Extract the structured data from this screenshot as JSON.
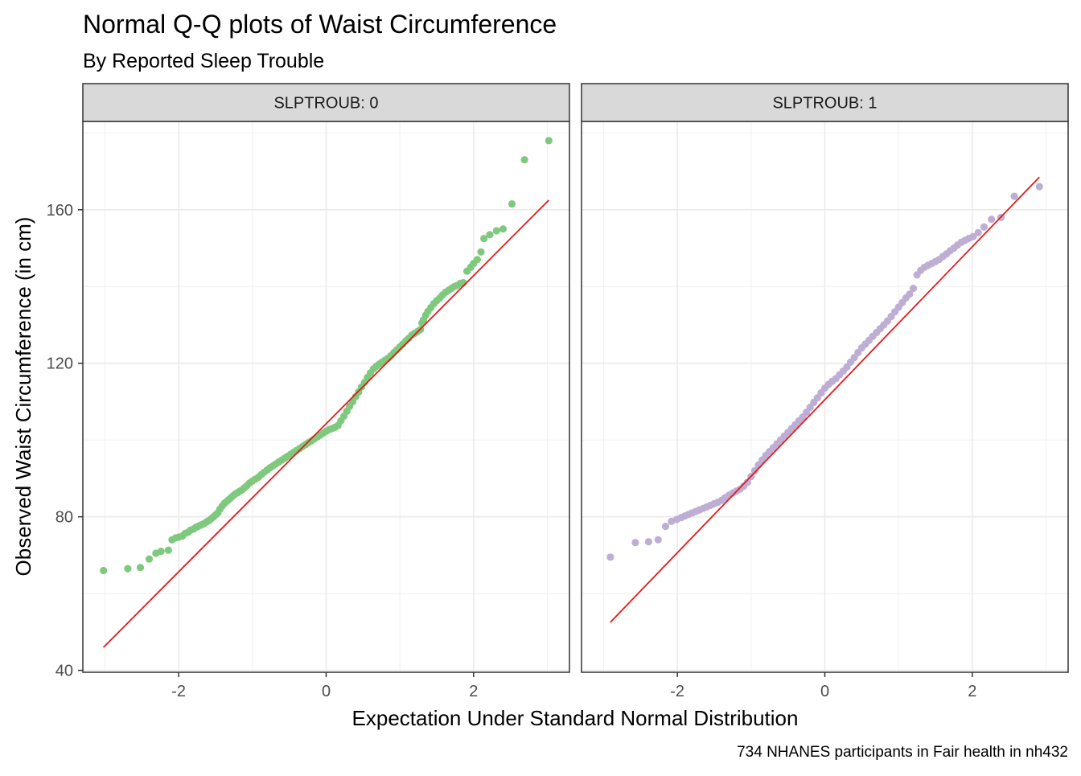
{
  "chart_data": {
    "type": "scatter",
    "title": "Normal Q-Q plots of Waist Circumference",
    "subtitle": "By Reported Sleep Trouble",
    "xlabel": "Expectation Under Standard Normal Distribution",
    "ylabel": "Observed Waist Circumference (in cm)",
    "caption": "734 NHANES participants in Fair health in nh432",
    "xlim": [
      -3.3,
      3.3
    ],
    "ylim": [
      39.5,
      183
    ],
    "x_ticks": [
      -2,
      0,
      2
    ],
    "x_tick_labels": [
      "-2",
      "0",
      "2"
    ],
    "y_ticks": [
      40,
      80,
      120,
      160
    ],
    "y_tick_labels": [
      "40",
      "80",
      "120",
      "160"
    ],
    "grid": true,
    "legend": "none",
    "facets": [
      {
        "strip_label": "SLPTROUB: 0",
        "point_color": "#7fc97f",
        "qq_line": {
          "color": "#e31a1c",
          "x": [
            -3.02,
            3.02
          ],
          "y": [
            46.0,
            162.5
          ]
        },
        "points_x": [
          -3.02,
          -2.69,
          -2.52,
          -2.4,
          -2.31,
          -2.24,
          -2.14,
          -2.09,
          -2.04,
          -2.0,
          -1.95,
          -1.91,
          -1.87,
          -1.84,
          -1.8,
          -1.77,
          -1.74,
          -1.71,
          -1.68,
          -1.65,
          -1.62,
          -1.59,
          -1.56,
          -1.53,
          -1.5,
          -1.47,
          -1.44,
          -1.41,
          -1.38,
          -1.35,
          -1.32,
          -1.29,
          -1.26,
          -1.23,
          -1.2,
          -1.17,
          -1.14,
          -1.11,
          -1.08,
          -1.04,
          -1.0,
          -0.96,
          -0.92,
          -0.88,
          -0.84,
          -0.8,
          -0.76,
          -0.72,
          -0.68,
          -0.64,
          -0.6,
          -0.56,
          -0.52,
          -0.48,
          -0.44,
          -0.4,
          -0.36,
          -0.32,
          -0.28,
          -0.24,
          -0.2,
          -0.16,
          -0.12,
          -0.08,
          -0.04,
          0.0,
          0.04,
          0.08,
          0.12,
          0.16,
          0.2,
          0.24,
          0.28,
          0.32,
          0.36,
          0.4,
          0.44,
          0.48,
          0.52,
          0.56,
          0.6,
          0.64,
          0.68,
          0.72,
          0.76,
          0.8,
          0.84,
          0.88,
          0.92,
          0.96,
          1.0,
          1.04,
          1.08,
          1.12,
          1.16,
          1.2,
          1.24,
          1.28,
          1.3,
          1.32,
          1.35,
          1.38,
          1.42,
          1.46,
          1.5,
          1.54,
          1.58,
          1.62,
          1.66,
          1.7,
          1.74,
          1.78,
          1.82,
          1.86,
          1.91,
          1.96,
          2.0,
          2.05,
          2.1,
          2.14,
          2.22,
          2.31,
          2.4,
          2.52,
          2.69,
          3.02
        ],
        "points_y": [
          66.0,
          66.5,
          66.8,
          69.0,
          70.5,
          71.0,
          71.3,
          74.0,
          74.5,
          74.7,
          75.0,
          75.7,
          76.0,
          76.5,
          76.8,
          77.2,
          77.5,
          77.8,
          78.0,
          78.3,
          78.7,
          79.0,
          79.5,
          80.0,
          80.5,
          81.0,
          82.0,
          82.8,
          83.5,
          84.0,
          84.5,
          85.0,
          85.5,
          86.0,
          86.3,
          86.7,
          87.0,
          87.5,
          88.0,
          88.8,
          89.3,
          89.8,
          90.3,
          91.0,
          91.6,
          92.2,
          92.8,
          93.3,
          93.8,
          94.3,
          94.8,
          95.3,
          95.8,
          96.3,
          96.8,
          97.3,
          97.8,
          98.3,
          98.8,
          99.3,
          99.8,
          100.3,
          100.8,
          101.3,
          101.8,
          102.3,
          102.7,
          103.0,
          103.3,
          103.8,
          105.0,
          106.2,
          107.5,
          108.8,
          110.0,
          111.3,
          112.5,
          113.8,
          115.0,
          116.3,
          117.5,
          118.5,
          119.2,
          119.8,
          120.3,
          120.8,
          121.3,
          122.0,
          122.8,
          123.5,
          124.3,
          125.0,
          125.8,
          126.5,
          127.3,
          127.8,
          128.3,
          128.8,
          130.5,
          131.3,
          132.5,
          133.5,
          134.5,
          135.5,
          136.3,
          137.0,
          137.8,
          138.5,
          139.0,
          139.5,
          140.0,
          140.3,
          140.8,
          141.0,
          144.0,
          145.0,
          146.0,
          147.0,
          149.0,
          152.5,
          153.5,
          154.5,
          155.0,
          161.5,
          173.0,
          178.0
        ]
      },
      {
        "strip_label": "SLPTROUB: 1",
        "point_color": "#beaed4",
        "qq_line": {
          "color": "#e31a1c",
          "x": [
            -2.91,
            2.91
          ],
          "y": [
            52.5,
            168.5
          ]
        },
        "points_x": [
          -2.91,
          -2.57,
          -2.39,
          -2.26,
          -2.16,
          -2.08,
          -2.01,
          -1.95,
          -1.9,
          -1.85,
          -1.8,
          -1.75,
          -1.7,
          -1.65,
          -1.6,
          -1.55,
          -1.5,
          -1.45,
          -1.4,
          -1.35,
          -1.3,
          -1.25,
          -1.2,
          -1.15,
          -1.1,
          -1.05,
          -1.0,
          -0.95,
          -0.9,
          -0.85,
          -0.8,
          -0.75,
          -0.7,
          -0.65,
          -0.6,
          -0.55,
          -0.5,
          -0.45,
          -0.4,
          -0.35,
          -0.3,
          -0.25,
          -0.2,
          -0.15,
          -0.1,
          -0.05,
          0.0,
          0.05,
          0.1,
          0.15,
          0.2,
          0.25,
          0.3,
          0.35,
          0.4,
          0.45,
          0.5,
          0.55,
          0.6,
          0.65,
          0.7,
          0.75,
          0.8,
          0.85,
          0.9,
          0.95,
          1.0,
          1.05,
          1.1,
          1.15,
          1.2,
          1.25,
          1.3,
          1.35,
          1.4,
          1.45,
          1.5,
          1.55,
          1.6,
          1.65,
          1.7,
          1.75,
          1.8,
          1.85,
          1.9,
          1.95,
          2.01,
          2.08,
          2.16,
          2.26,
          2.39,
          2.57,
          2.91
        ],
        "points_y": [
          69.5,
          73.3,
          73.5,
          74.0,
          77.5,
          78.8,
          79.3,
          79.8,
          80.2,
          80.6,
          81.0,
          81.4,
          81.8,
          82.2,
          82.6,
          83.0,
          83.4,
          83.8,
          84.3,
          85.0,
          85.6,
          86.2,
          86.7,
          87.2,
          88.0,
          89.0,
          90.5,
          92.0,
          93.5,
          94.8,
          96.0,
          97.0,
          98.0,
          99.0,
          100.0,
          101.0,
          102.0,
          103.0,
          104.0,
          105.0,
          106.0,
          107.2,
          108.5,
          109.8,
          111.0,
          112.3,
          113.5,
          114.5,
          115.3,
          116.0,
          117.0,
          118.0,
          119.0,
          120.3,
          121.5,
          122.8,
          124.0,
          125.0,
          126.0,
          127.0,
          128.0,
          129.0,
          130.0,
          131.0,
          132.2,
          133.4,
          134.6,
          135.8,
          137.0,
          138.0,
          139.5,
          143.0,
          144.2,
          145.0,
          145.5,
          146.0,
          146.5,
          147.0,
          147.8,
          148.5,
          149.3,
          150.0,
          150.8,
          151.5,
          152.0,
          152.5,
          153.0,
          154.0,
          155.5,
          157.5,
          158.0,
          163.5,
          166.0
        ]
      }
    ]
  }
}
